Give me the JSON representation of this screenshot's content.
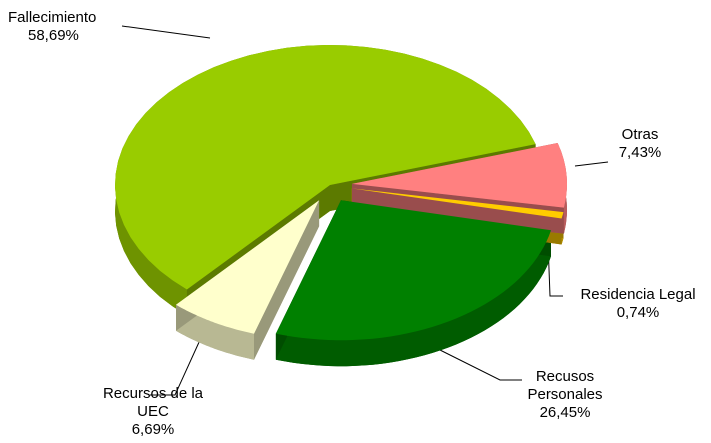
{
  "chart_data": {
    "type": "pie",
    "categories": [
      "Fallecimiento",
      "Recursos de la UEC",
      "Recusos Personales",
      "Residencia Legal",
      "Otras"
    ],
    "values": [
      58.69,
      6.69,
      26.45,
      0.74,
      7.43
    ],
    "value_labels": [
      "58,69%",
      "6,69%",
      "26,45%",
      "0,74%",
      "7,43%"
    ],
    "colors": [
      "#99cc00",
      "#ffffcc",
      "#008000",
      "#ffcc00",
      "#ff8080"
    ]
  }
}
